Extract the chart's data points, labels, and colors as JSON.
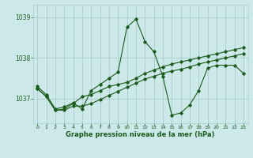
{
  "title": "Graphe pression niveau de la mer (hPa)",
  "bg_color": "#cce8e8",
  "grid_color": "#aacccc",
  "line_color": "#1a5c1a",
  "marker_color": "#1a5c1a",
  "xlim": [
    -0.5,
    23.5
  ],
  "ylim": [
    1036.4,
    1039.3
  ],
  "yticks": [
    1037,
    1038,
    1039
  ],
  "xticks": [
    0,
    1,
    2,
    3,
    4,
    5,
    6,
    7,
    8,
    9,
    10,
    11,
    12,
    13,
    14,
    15,
    16,
    17,
    18,
    19,
    20,
    21,
    22,
    23
  ],
  "series1": [
    [
      0,
      1037.3
    ],
    [
      1,
      1037.1
    ],
    [
      2,
      1036.75
    ],
    [
      3,
      1036.8
    ],
    [
      4,
      1036.9
    ],
    [
      5,
      1036.75
    ],
    [
      6,
      1037.2
    ],
    [
      7,
      1037.35
    ],
    [
      8,
      1037.5
    ],
    [
      9,
      1037.65
    ],
    [
      10,
      1038.75
    ],
    [
      11,
      1038.95
    ],
    [
      12,
      1038.4
    ],
    [
      13,
      1038.15
    ],
    [
      14,
      1037.55
    ],
    [
      15,
      1036.6
    ],
    [
      16,
      1036.65
    ],
    [
      17,
      1036.85
    ],
    [
      18,
      1037.2
    ],
    [
      19,
      1037.75
    ],
    [
      20,
      1037.82
    ],
    [
      21,
      1037.82
    ],
    [
      22,
      1037.82
    ],
    [
      23,
      1037.62
    ]
  ],
  "series2": [
    [
      0,
      1037.25
    ],
    [
      1,
      1037.05
    ],
    [
      2,
      1036.72
    ],
    [
      3,
      1036.75
    ],
    [
      4,
      1036.88
    ],
    [
      5,
      1037.05
    ],
    [
      6,
      1037.1
    ],
    [
      7,
      1037.2
    ],
    [
      8,
      1037.3
    ],
    [
      9,
      1037.35
    ],
    [
      10,
      1037.4
    ],
    [
      11,
      1037.5
    ],
    [
      12,
      1037.62
    ],
    [
      13,
      1037.7
    ],
    [
      14,
      1037.78
    ],
    [
      15,
      1037.85
    ],
    [
      16,
      1037.9
    ],
    [
      17,
      1037.95
    ],
    [
      18,
      1038.0
    ],
    [
      19,
      1038.05
    ],
    [
      20,
      1038.1
    ],
    [
      21,
      1038.15
    ],
    [
      22,
      1038.2
    ],
    [
      23,
      1038.25
    ]
  ],
  "series3": [
    [
      0,
      1037.25
    ],
    [
      1,
      1037.05
    ],
    [
      2,
      1036.72
    ],
    [
      3,
      1036.72
    ],
    [
      4,
      1036.82
    ],
    [
      5,
      1036.82
    ],
    [
      6,
      1036.88
    ],
    [
      7,
      1036.98
    ],
    [
      8,
      1037.08
    ],
    [
      9,
      1037.18
    ],
    [
      10,
      1037.28
    ],
    [
      11,
      1037.38
    ],
    [
      12,
      1037.48
    ],
    [
      13,
      1037.55
    ],
    [
      14,
      1037.62
    ],
    [
      15,
      1037.68
    ],
    [
      16,
      1037.72
    ],
    [
      17,
      1037.78
    ],
    [
      18,
      1037.85
    ],
    [
      19,
      1037.9
    ],
    [
      20,
      1037.95
    ],
    [
      21,
      1038.0
    ],
    [
      22,
      1038.05
    ],
    [
      23,
      1038.1
    ]
  ]
}
